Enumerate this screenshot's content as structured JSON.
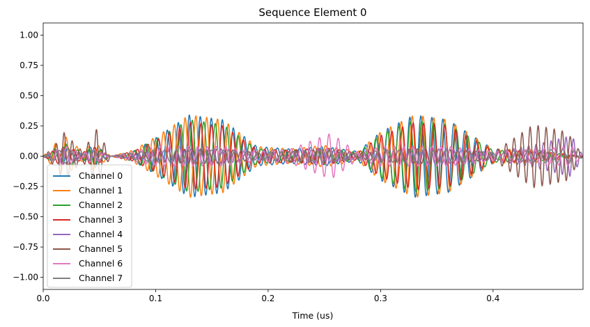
{
  "chart_data": {
    "type": "line",
    "title": "Sequence Element 0",
    "xlabel": "Time (us)",
    "ylabel": "",
    "xlim": [
      0.0,
      0.48
    ],
    "ylim": [
      -1.1,
      1.1
    ],
    "xticks": [
      0.0,
      0.1,
      0.2,
      0.3,
      0.4
    ],
    "xtick_labels": [
      "0.0",
      "0.1",
      "0.2",
      "0.3",
      "0.4"
    ],
    "yticks": [
      -1.0,
      -0.75,
      -0.5,
      -0.25,
      0.0,
      0.25,
      0.5,
      0.75,
      1.0
    ],
    "ytick_labels": [
      "−1.00",
      "−0.75",
      "−0.50",
      "−0.25",
      "0.00",
      "0.25",
      "0.50",
      "0.75",
      "1.00"
    ],
    "grid": false,
    "legend_position": "lower-left",
    "series": [
      {
        "name": "Channel 0",
        "color": "#1f77b4",
        "values": [
          {
            "x": 0.0,
            "y": 0.0
          },
          {
            "x": 0.01,
            "y": 0.05
          },
          {
            "x": 0.02,
            "y": 0.08
          },
          {
            "x": 0.035,
            "y": 0.02
          },
          {
            "x": 0.045,
            "y": 0.1
          },
          {
            "x": 0.06,
            "y": 0.0
          },
          {
            "x": 0.08,
            "y": 0.04
          },
          {
            "x": 0.1,
            "y": 0.15
          },
          {
            "x": 0.13,
            "y": 0.34
          },
          {
            "x": 0.16,
            "y": 0.3
          },
          {
            "x": 0.19,
            "y": 0.08
          },
          {
            "x": 0.22,
            "y": 0.06
          },
          {
            "x": 0.25,
            "y": 0.08
          },
          {
            "x": 0.28,
            "y": 0.04
          },
          {
            "x": 0.3,
            "y": 0.2
          },
          {
            "x": 0.33,
            "y": 0.34
          },
          {
            "x": 0.36,
            "y": 0.3
          },
          {
            "x": 0.4,
            "y": 0.06
          },
          {
            "x": 0.44,
            "y": 0.05
          },
          {
            "x": 0.48,
            "y": 0.0
          }
        ]
      },
      {
        "name": "Channel 1",
        "color": "#ff7f0e",
        "values": [
          {
            "x": 0.0,
            "y": 0.0
          },
          {
            "x": 0.01,
            "y": 0.1
          },
          {
            "x": 0.02,
            "y": 0.16
          },
          {
            "x": 0.035,
            "y": 0.04
          },
          {
            "x": 0.045,
            "y": 0.12
          },
          {
            "x": 0.06,
            "y": 0.0
          },
          {
            "x": 0.08,
            "y": 0.05
          },
          {
            "x": 0.1,
            "y": 0.16
          },
          {
            "x": 0.13,
            "y": 0.34
          },
          {
            "x": 0.16,
            "y": 0.3
          },
          {
            "x": 0.19,
            "y": 0.08
          },
          {
            "x": 0.22,
            "y": 0.06
          },
          {
            "x": 0.25,
            "y": 0.09
          },
          {
            "x": 0.28,
            "y": 0.04
          },
          {
            "x": 0.3,
            "y": 0.2
          },
          {
            "x": 0.33,
            "y": 0.34
          },
          {
            "x": 0.36,
            "y": 0.3
          },
          {
            "x": 0.4,
            "y": 0.06
          },
          {
            "x": 0.44,
            "y": 0.05
          },
          {
            "x": 0.48,
            "y": 0.0
          }
        ]
      },
      {
        "name": "Channel 2",
        "color": "#2ca02c",
        "values": [
          {
            "x": 0.0,
            "y": 0.0
          },
          {
            "x": 0.01,
            "y": 0.06
          },
          {
            "x": 0.02,
            "y": 0.1
          },
          {
            "x": 0.035,
            "y": 0.03
          },
          {
            "x": 0.045,
            "y": 0.08
          },
          {
            "x": 0.06,
            "y": 0.0
          },
          {
            "x": 0.08,
            "y": 0.04
          },
          {
            "x": 0.1,
            "y": 0.14
          },
          {
            "x": 0.13,
            "y": 0.3
          },
          {
            "x": 0.16,
            "y": 0.26
          },
          {
            "x": 0.19,
            "y": 0.06
          },
          {
            "x": 0.22,
            "y": 0.05
          },
          {
            "x": 0.25,
            "y": 0.07
          },
          {
            "x": 0.28,
            "y": 0.03
          },
          {
            "x": 0.3,
            "y": 0.18
          },
          {
            "x": 0.33,
            "y": 0.3
          },
          {
            "x": 0.36,
            "y": 0.26
          },
          {
            "x": 0.4,
            "y": 0.05
          },
          {
            "x": 0.44,
            "y": 0.04
          },
          {
            "x": 0.48,
            "y": 0.0
          }
        ]
      },
      {
        "name": "Channel 3",
        "color": "#d62728",
        "values": [
          {
            "x": 0.0,
            "y": 0.0
          },
          {
            "x": 0.01,
            "y": 0.05
          },
          {
            "x": 0.02,
            "y": 0.08
          },
          {
            "x": 0.035,
            "y": 0.03
          },
          {
            "x": 0.045,
            "y": 0.08
          },
          {
            "x": 0.06,
            "y": 0.0
          },
          {
            "x": 0.08,
            "y": 0.04
          },
          {
            "x": 0.1,
            "y": 0.13
          },
          {
            "x": 0.13,
            "y": 0.28
          },
          {
            "x": 0.16,
            "y": 0.25
          },
          {
            "x": 0.19,
            "y": 0.06
          },
          {
            "x": 0.22,
            "y": 0.05
          },
          {
            "x": 0.25,
            "y": 0.07
          },
          {
            "x": 0.28,
            "y": 0.03
          },
          {
            "x": 0.3,
            "y": 0.17
          },
          {
            "x": 0.33,
            "y": 0.28
          },
          {
            "x": 0.36,
            "y": 0.25
          },
          {
            "x": 0.4,
            "y": 0.05
          },
          {
            "x": 0.44,
            "y": 0.04
          },
          {
            "x": 0.48,
            "y": 0.0
          }
        ]
      },
      {
        "name": "Channel 4",
        "color": "#9467bd",
        "values": [
          {
            "x": 0.0,
            "y": 0.0
          },
          {
            "x": 0.01,
            "y": 0.04
          },
          {
            "x": 0.02,
            "y": 0.06
          },
          {
            "x": 0.035,
            "y": 0.02
          },
          {
            "x": 0.045,
            "y": 0.05
          },
          {
            "x": 0.06,
            "y": 0.0
          },
          {
            "x": 0.08,
            "y": 0.02
          },
          {
            "x": 0.1,
            "y": 0.04
          },
          {
            "x": 0.13,
            "y": 0.06
          },
          {
            "x": 0.16,
            "y": 0.06
          },
          {
            "x": 0.19,
            "y": 0.03
          },
          {
            "x": 0.22,
            "y": 0.04
          },
          {
            "x": 0.25,
            "y": 0.06
          },
          {
            "x": 0.28,
            "y": 0.02
          },
          {
            "x": 0.3,
            "y": 0.04
          },
          {
            "x": 0.33,
            "y": 0.06
          },
          {
            "x": 0.36,
            "y": 0.06
          },
          {
            "x": 0.4,
            "y": 0.03
          },
          {
            "x": 0.44,
            "y": 0.1
          },
          {
            "x": 0.47,
            "y": 0.17
          },
          {
            "x": 0.48,
            "y": 0.0
          }
        ]
      },
      {
        "name": "Channel 5",
        "color": "#8c564b",
        "values": [
          {
            "x": 0.0,
            "y": 0.0
          },
          {
            "x": 0.01,
            "y": 0.08
          },
          {
            "x": 0.018,
            "y": 0.2
          },
          {
            "x": 0.035,
            "y": 0.04
          },
          {
            "x": 0.048,
            "y": 0.23
          },
          {
            "x": 0.06,
            "y": 0.0
          },
          {
            "x": 0.08,
            "y": 0.02
          },
          {
            "x": 0.1,
            "y": 0.04
          },
          {
            "x": 0.13,
            "y": 0.06
          },
          {
            "x": 0.16,
            "y": 0.06
          },
          {
            "x": 0.19,
            "y": 0.03
          },
          {
            "x": 0.22,
            "y": 0.04
          },
          {
            "x": 0.25,
            "y": 0.06
          },
          {
            "x": 0.28,
            "y": 0.02
          },
          {
            "x": 0.3,
            "y": 0.04
          },
          {
            "x": 0.33,
            "y": 0.06
          },
          {
            "x": 0.36,
            "y": 0.06
          },
          {
            "x": 0.4,
            "y": 0.03
          },
          {
            "x": 0.436,
            "y": 0.26
          },
          {
            "x": 0.466,
            "y": 0.2
          },
          {
            "x": 0.48,
            "y": 0.0
          }
        ]
      },
      {
        "name": "Channel 6",
        "color": "#e377c2",
        "values": [
          {
            "x": 0.0,
            "y": 0.0
          },
          {
            "x": 0.01,
            "y": 0.05
          },
          {
            "x": 0.02,
            "y": 0.08
          },
          {
            "x": 0.035,
            "y": 0.02
          },
          {
            "x": 0.045,
            "y": 0.06
          },
          {
            "x": 0.06,
            "y": 0.0
          },
          {
            "x": 0.08,
            "y": 0.04
          },
          {
            "x": 0.1,
            "y": 0.08
          },
          {
            "x": 0.13,
            "y": 0.08
          },
          {
            "x": 0.16,
            "y": 0.08
          },
          {
            "x": 0.19,
            "y": 0.04
          },
          {
            "x": 0.22,
            "y": 0.06
          },
          {
            "x": 0.256,
            "y": 0.19
          },
          {
            "x": 0.28,
            "y": 0.03
          },
          {
            "x": 0.3,
            "y": 0.08
          },
          {
            "x": 0.33,
            "y": 0.08
          },
          {
            "x": 0.36,
            "y": 0.08
          },
          {
            "x": 0.4,
            "y": 0.04
          },
          {
            "x": 0.44,
            "y": 0.06
          },
          {
            "x": 0.47,
            "y": 0.08
          },
          {
            "x": 0.48,
            "y": 0.0
          }
        ]
      },
      {
        "name": "Channel 7",
        "color": "#7f7f7f",
        "values": [
          {
            "x": 0.0,
            "y": 0.0
          },
          {
            "x": 0.01,
            "y": 0.04
          },
          {
            "x": 0.02,
            "y": 0.06
          },
          {
            "x": 0.035,
            "y": 0.02
          },
          {
            "x": 0.045,
            "y": 0.05
          },
          {
            "x": 0.06,
            "y": 0.0
          },
          {
            "x": 0.08,
            "y": 0.03
          },
          {
            "x": 0.1,
            "y": 0.05
          },
          {
            "x": 0.13,
            "y": 0.05
          },
          {
            "x": 0.16,
            "y": 0.05
          },
          {
            "x": 0.19,
            "y": 0.03
          },
          {
            "x": 0.22,
            "y": 0.04
          },
          {
            "x": 0.25,
            "y": 0.05
          },
          {
            "x": 0.28,
            "y": 0.02
          },
          {
            "x": 0.3,
            "y": 0.05
          },
          {
            "x": 0.33,
            "y": 0.05
          },
          {
            "x": 0.36,
            "y": 0.05
          },
          {
            "x": 0.4,
            "y": 0.03
          },
          {
            "x": 0.44,
            "y": 0.05
          },
          {
            "x": 0.47,
            "y": 0.06
          },
          {
            "x": 0.48,
            "y": 0.0
          }
        ]
      }
    ]
  }
}
